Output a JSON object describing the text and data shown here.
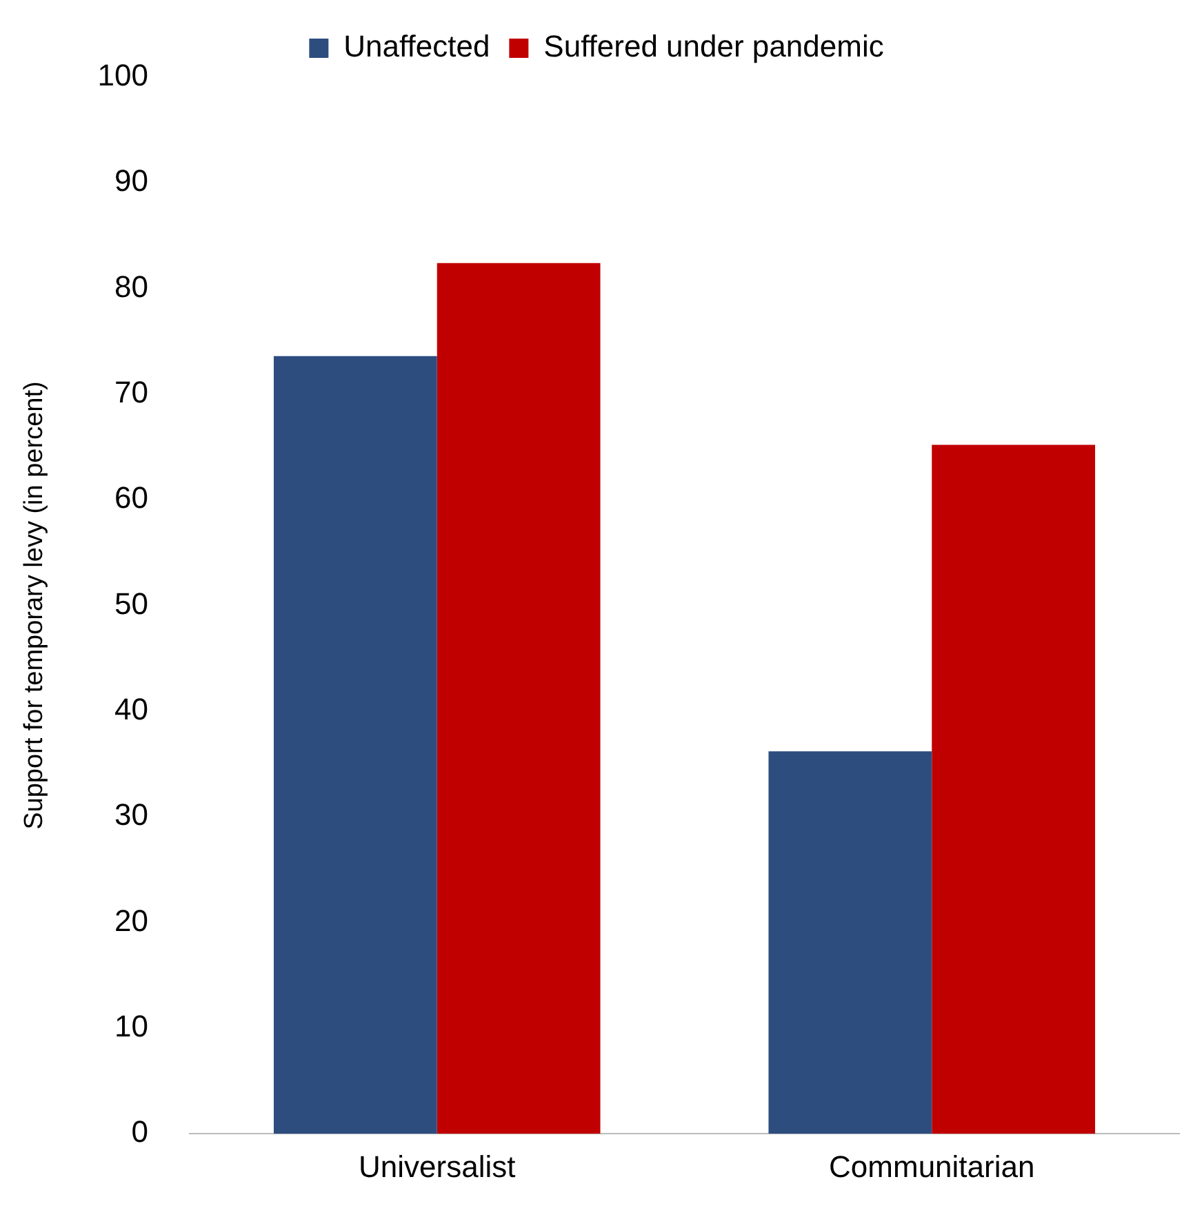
{
  "chart_data": {
    "type": "bar",
    "ylabel": "Support for temporary levy (in percent)",
    "categories": [
      "Universalist",
      "Communitarian"
    ],
    "series": [
      {
        "name": "Unaffected",
        "color": "#2e4d7f",
        "values": [
          73.6,
          36.2
        ]
      },
      {
        "name": "Suffered under pandemic",
        "color": "#c00000",
        "values": [
          82.4,
          65.2
        ]
      }
    ],
    "ylim": [
      0,
      100
    ],
    "yticks": [
      0,
      10,
      20,
      30,
      40,
      50,
      60,
      70,
      80,
      90,
      100
    ],
    "grid": false,
    "legend": "top"
  }
}
